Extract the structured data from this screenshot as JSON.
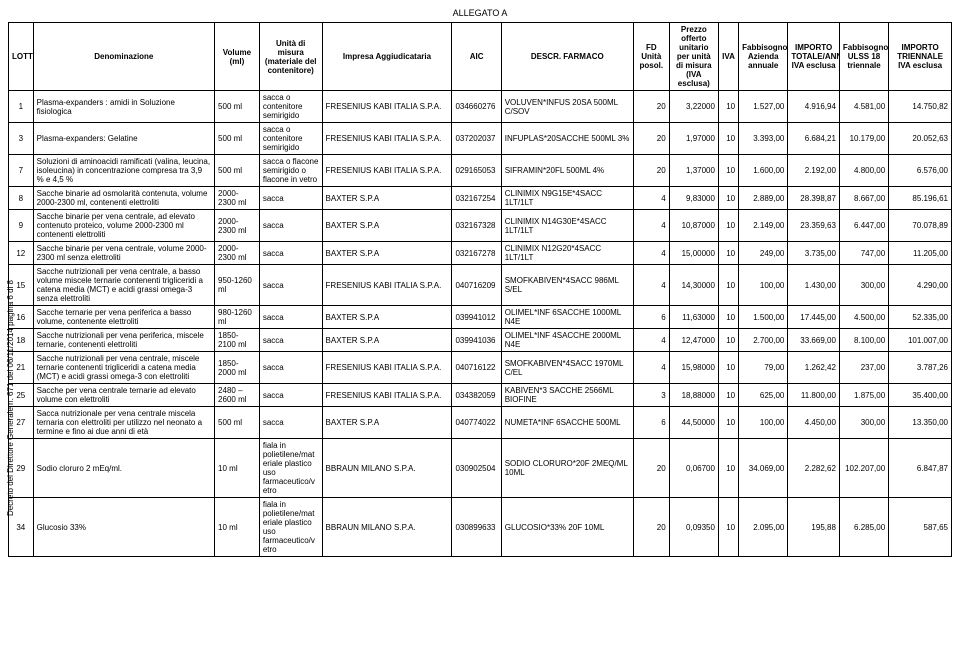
{
  "doc_title": "ALLEGATO A",
  "side_note": "Decreto del Direttore Generale n. 671 del 06/11/2014 pagina 6 di 8",
  "headers": [
    "LOTTO",
    "Denominazione",
    "Volume (ml)",
    "Unità di misura (materiale del contenitore)",
    "Impresa Aggiudicataria",
    "AIC",
    "DESCR. FARMACO",
    "FD Unità posol.",
    "Prezzo offerto unitario per unità di misura (IVA esclusa)",
    "IVA",
    "Fabbisogno Azienda annuale",
    "IMPORTO TOTALE/ANNO IVA esclusa",
    "Fabbisogno ULSS 18 triennale",
    "IMPORTO TRIENNALE IVA esclusa"
  ],
  "rows": [
    {
      "lotto": "1",
      "denom": "Plasma-expanders : amidi in Soluzione fisiologica",
      "vol": "500 ml",
      "unita": "sacca o contenitore semirigido",
      "impresa": "FRESENIUS KABI ITALIA S.P.A.",
      "aic": "034660276",
      "descr": "VOLUVEN*INFUS 20SA 500ML C/SOV",
      "fd": "20",
      "prezzo": "3,22000",
      "iva": "10",
      "fabbann": "1.527,00",
      "importotot": "4.916,94",
      "fabb18": "4.581,00",
      "importotr": "14.750,82"
    },
    {
      "lotto": "3",
      "denom": "Plasma-expanders: Gelatine",
      "vol": "500 ml",
      "unita": "sacca o contenitore semirigido",
      "impresa": "FRESENIUS KABI ITALIA S.P.A.",
      "aic": "037202037",
      "descr": "INFUPLAS*20SACCHE 500ML 3%",
      "fd": "20",
      "prezzo": "1,97000",
      "iva": "10",
      "fabbann": "3.393,00",
      "importotot": "6.684,21",
      "fabb18": "10.179,00",
      "importotr": "20.052,63"
    },
    {
      "lotto": "7",
      "denom": "Soluzioni di aminoacidi ramificati (valina, leucina, isoleucina) in concentrazione compresa tra 3,9 % e 4,5 %",
      "vol": "500 ml",
      "unita": "sacca o flacone semirigido o flacone in vetro",
      "impresa": "FRESENIUS KABI ITALIA S.P.A.",
      "aic": "029165053",
      "descr": "SIFRAMIN*20FL 500ML 4%",
      "fd": "20",
      "prezzo": "1,37000",
      "iva": "10",
      "fabbann": "1.600,00",
      "importotot": "2.192,00",
      "fabb18": "4.800,00",
      "importotr": "6.576,00"
    },
    {
      "lotto": "8",
      "denom": "Sacche binarie ad osmolarità contenuta, volume 2000-2300 ml, contenenti elettroliti",
      "vol": "2000-2300 ml",
      "unita": "sacca",
      "impresa": "BAXTER S.P.A",
      "aic": "032167254",
      "descr": "CLINIMIX N9G15E*4SACC 1LT/1LT",
      "fd": "4",
      "prezzo": "9,83000",
      "iva": "10",
      "fabbann": "2.889,00",
      "importotot": "28.398,87",
      "fabb18": "8.667,00",
      "importotr": "85.196,61"
    },
    {
      "lotto": "9",
      "denom": "Sacche binarie per vena centrale, ad elevato contenuto proteico, volume 2000-2300 ml contenenti elettroliti",
      "vol": "2000-2300 ml",
      "unita": "sacca",
      "impresa": "BAXTER S.P.A",
      "aic": "032167328",
      "descr": "CLINIMIX N14G30E*4SACC 1LT/1LT",
      "fd": "4",
      "prezzo": "10,87000",
      "iva": "10",
      "fabbann": "2.149,00",
      "importotot": "23.359,63",
      "fabb18": "6.447,00",
      "importotr": "70.078,89"
    },
    {
      "lotto": "12",
      "denom": "Sacche binarie per vena centrale, volume 2000-2300 ml senza elettroliti",
      "vol": "2000-2300 ml",
      "unita": "sacca",
      "impresa": "BAXTER S.P.A",
      "aic": "032167278",
      "descr": "CLINIMIX N12G20*4SACC 1LT/1LT",
      "fd": "4",
      "prezzo": "15,00000",
      "iva": "10",
      "fabbann": "249,00",
      "importotot": "3.735,00",
      "fabb18": "747,00",
      "importotr": "11.205,00"
    },
    {
      "lotto": "15",
      "denom": "Sacche nutrizionali per vena centrale, a basso volume miscele ternarie contenenti trigliceridi a catena media (MCT) e acidi grassi omega-3 senza elettroliti",
      "vol": "950-1260 ml",
      "unita": "sacca",
      "impresa": "FRESENIUS KABI ITALIA S.P.A.",
      "aic": "040716209",
      "descr": "SMOFKABIVEN*4SACC 986ML S/EL",
      "fd": "4",
      "prezzo": "14,30000",
      "iva": "10",
      "fabbann": "100,00",
      "importotot": "1.430,00",
      "fabb18": "300,00",
      "importotr": "4.290,00"
    },
    {
      "lotto": "16",
      "denom": "Sacche ternarie per vena periferica a basso volume, contenente elettroliti",
      "vol": "980-1260 ml",
      "unita": "sacca",
      "impresa": "BAXTER S.P.A",
      "aic": "039941012",
      "descr": "OLIMEL*INF 6SACCHE 1000ML N4E",
      "fd": "6",
      "prezzo": "11,63000",
      "iva": "10",
      "fabbann": "1.500,00",
      "importotot": "17.445,00",
      "fabb18": "4.500,00",
      "importotr": "52.335,00"
    },
    {
      "lotto": "18",
      "denom": "Sacche nutrizionali per vena periferica, miscele ternarie, contenenti elettroliti",
      "vol": "1850-2100 ml",
      "unita": "sacca",
      "impresa": "BAXTER S.P.A",
      "aic": "039941036",
      "descr": "OLIMEL*INF 4SACCHE 2000ML N4E",
      "fd": "4",
      "prezzo": "12,47000",
      "iva": "10",
      "fabbann": "2.700,00",
      "importotot": "33.669,00",
      "fabb18": "8.100,00",
      "importotr": "101.007,00"
    },
    {
      "lotto": "21",
      "denom": "Sacche nutrizionali per vena centrale, miscele ternarie contenenti trigliceridi a catena media (MCT) e acidi grassi omega-3 con elettroliti",
      "vol": "1850-2000 ml",
      "unita": "sacca",
      "impresa": "FRESENIUS KABI ITALIA S.P.A.",
      "aic": "040716122",
      "descr": "SMOFKABIVEN*4SACC 1970ML C/EL",
      "fd": "4",
      "prezzo": "15,98000",
      "iva": "10",
      "fabbann": "79,00",
      "importotot": "1.262,42",
      "fabb18": "237,00",
      "importotr": "3.787,26"
    },
    {
      "lotto": "25",
      "denom": "Sacche per vena centrale ternarie ad elevato volume con elettroliti",
      "vol": "2480 – 2600 ml",
      "unita": "sacca",
      "impresa": "FRESENIUS KABI ITALIA S.P.A.",
      "aic": "034382059",
      "descr": "KABIVEN*3 SACCHE 2566ML BIOFINE",
      "fd": "3",
      "prezzo": "18,88000",
      "iva": "10",
      "fabbann": "625,00",
      "importotot": "11.800,00",
      "fabb18": "1.875,00",
      "importotr": "35.400,00"
    },
    {
      "lotto": "27",
      "denom": "Sacca nutrizionale per vena centrale miscela ternaria con elettroliti per utilizzo nel neonato a termine e fino ai due anni di età",
      "vol": "500 ml",
      "unita": "sacca",
      "impresa": "BAXTER S.P.A",
      "aic": "040774022",
      "descr": "NUMETA*INF 6SACCHE 500ML",
      "fd": "6",
      "prezzo": "44,50000",
      "iva": "10",
      "fabbann": "100,00",
      "importotot": "4.450,00",
      "fabb18": "300,00",
      "importotr": "13.350,00"
    },
    {
      "lotto": "29",
      "denom": "Sodio cloruro 2 mEq/ml.",
      "vol": "10 ml",
      "unita": "fiala in polietilene/mat eriale plastico uso farmaceutico/v etro",
      "impresa": "BBRAUN MILANO S.P.A.",
      "aic": "030902504",
      "descr": "SODIO CLORURO*20F 2MEQ/ML 10ML",
      "fd": "20",
      "prezzo": "0,06700",
      "iva": "10",
      "fabbann": "34.069,00",
      "importotot": "2.282,62",
      "fabb18": "102.207,00",
      "importotr": "6.847,87"
    },
    {
      "lotto": "34",
      "denom": "Glucosio 33%",
      "vol": "10 ml",
      "unita": "fiala in polietilene/mat eriale plastico uso farmaceutico/v etro",
      "impresa": "BBRAUN MILANO S.P.A.",
      "aic": "030899633",
      "descr": "GLUCOSIO*33% 20F 10ML",
      "fd": "20",
      "prezzo": "0,09350",
      "iva": "10",
      "fabbann": "2.095,00",
      "importotot": "195,88",
      "fabb18": "6.285,00",
      "importotr": "587,65"
    }
  ]
}
